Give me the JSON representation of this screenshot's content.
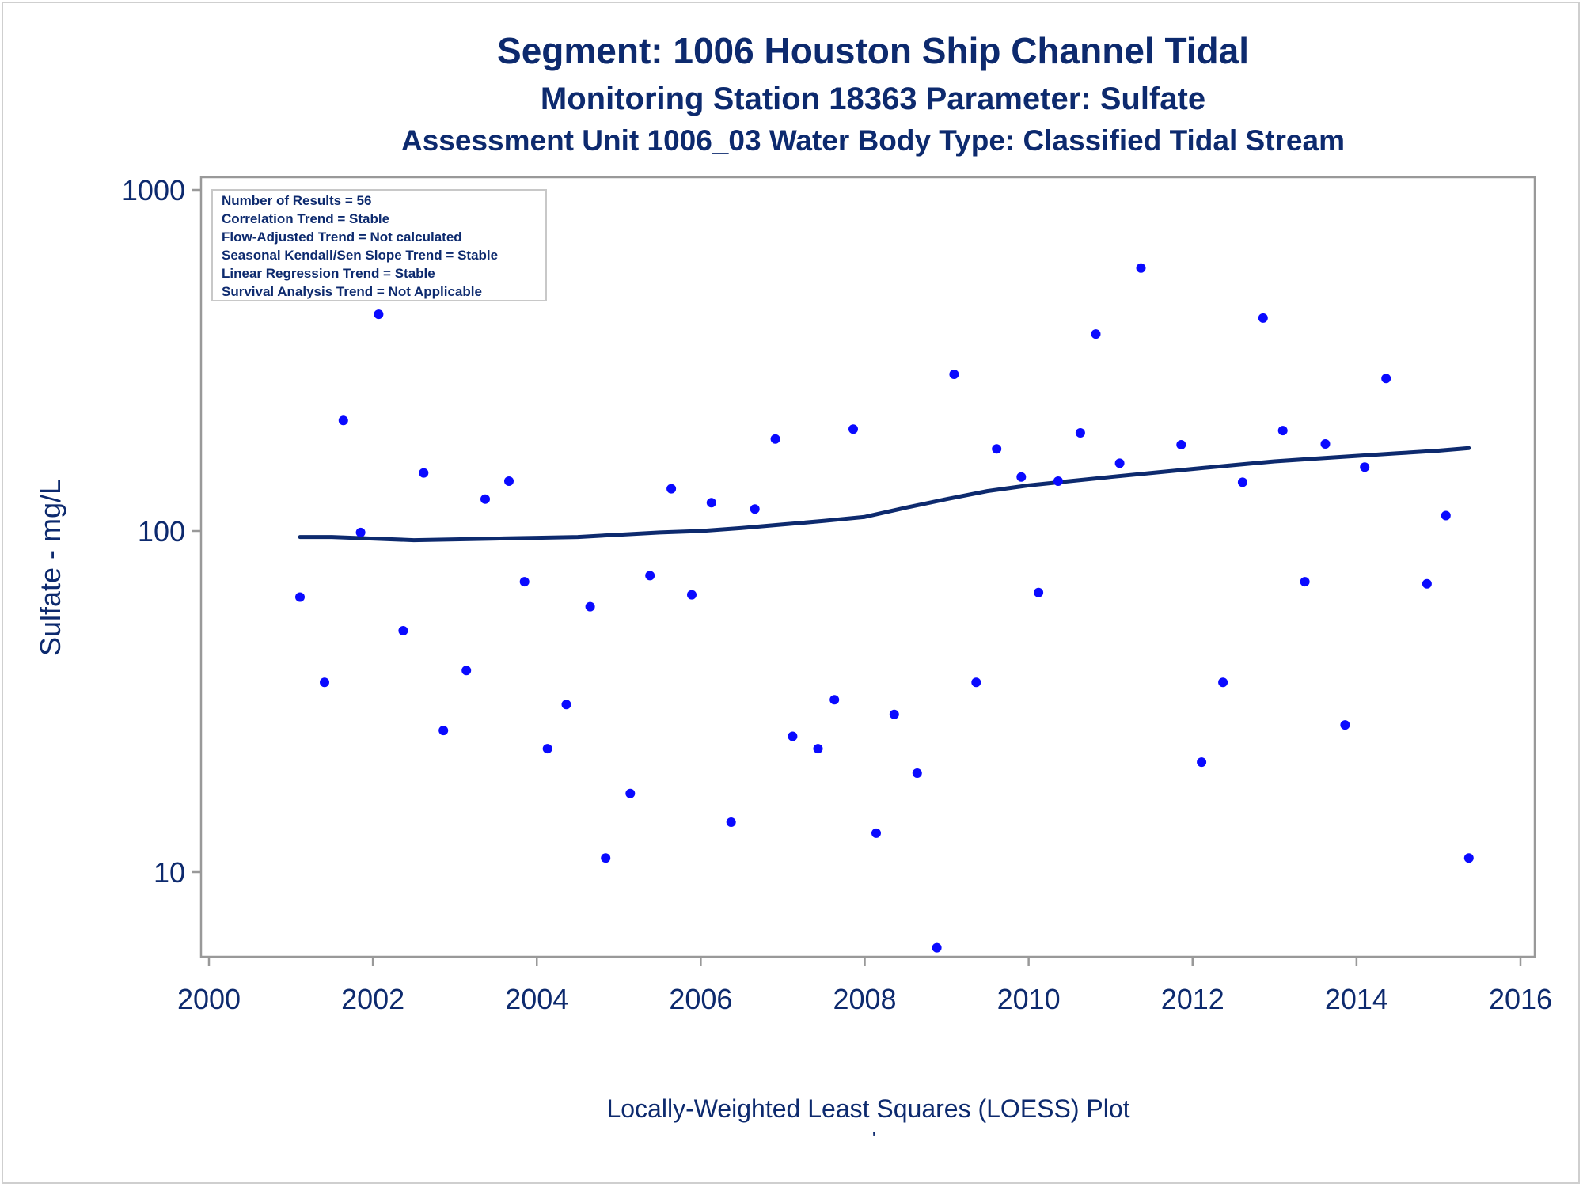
{
  "titles": {
    "line1": "Segment: 1006  Houston Ship Channel Tidal",
    "line2": "Monitoring Station 18363 Parameter: Sulfate",
    "line3": "Assessment Unit 1006_03   Water Body Type: Classified Tidal Stream"
  },
  "stats_box": {
    "lines": [
      "Number of Results = 56",
      "Correlation Trend = Stable",
      "Flow-Adjusted Trend = Not calculated",
      "Seasonal Kendall/Sen Slope Trend = Stable",
      "Linear Regression Trend = Stable",
      "Survival Analysis Trend = Not Applicable"
    ]
  },
  "footnote": "Locally-Weighted Least Squares (LOESS) Plot",
  "colors": {
    "text": "#0d2a6e",
    "points": "#0a0aff",
    "loess_line": "#0d2a6e",
    "axis": "#999999"
  },
  "chart_data": {
    "type": "scatter",
    "title": "Segment: 1006  Houston Ship Channel Tidal",
    "xlabel": "",
    "ylabel": "Sulfate - mg/L",
    "xlim": [
      2000,
      2016
    ],
    "ylim": [
      5.99,
      1052
    ],
    "y_scale": "log",
    "x_ticks": [
      2000,
      2002,
      2004,
      2006,
      2008,
      2010,
      2012,
      2014,
      2016
    ],
    "y_ticks": [
      10,
      100,
      1000
    ],
    "grid": false,
    "series": [
      {
        "kind": "points",
        "x": [
          2001.11,
          2001.41,
          2001.64,
          2001.85,
          2002.07,
          2002.37,
          2002.62,
          2002.86,
          2003.14,
          2003.37,
          2003.66,
          2003.85,
          2004.13,
          2004.36,
          2004.65,
          2004.84,
          2005.14,
          2005.38,
          2005.64,
          2005.89,
          2006.13,
          2006.37,
          2006.66,
          2006.91,
          2007.12,
          2007.43,
          2007.63,
          2007.86,
          2008.14,
          2008.36,
          2008.64,
          2008.88,
          2009.09,
          2009.36,
          2009.61,
          2009.91,
          2010.12,
          2010.36,
          2010.63,
          2010.82,
          2011.11,
          2011.37,
          2011.86,
          2012.11,
          2012.37,
          2012.61,
          2012.86,
          2013.1,
          2013.37,
          2013.62,
          2013.86,
          2014.1,
          2014.36,
          2014.86,
          2015.09,
          2015.37
        ],
        "y": [
          64,
          36,
          211,
          99,
          432,
          51,
          148,
          26,
          39,
          124,
          140,
          71,
          23,
          31,
          60,
          11,
          17,
          74,
          133,
          65,
          121,
          14,
          116,
          186,
          25,
          23,
          32,
          199,
          13,
          29,
          19.5,
          6,
          288,
          36,
          174,
          144,
          66,
          140,
          194,
          378,
          158,
          590,
          179,
          21,
          36,
          139,
          421,
          197,
          71,
          180,
          27,
          154,
          280,
          70,
          111,
          11
        ]
      },
      {
        "kind": "loess_line",
        "x": [
          2001.11,
          2001.5,
          2002.0,
          2002.5,
          2003.0,
          2003.5,
          2004.0,
          2004.5,
          2005.0,
          2005.5,
          2006.0,
          2006.5,
          2007.0,
          2007.5,
          2008.0,
          2008.5,
          2009.0,
          2009.5,
          2010.0,
          2010.5,
          2011.0,
          2011.5,
          2012.0,
          2012.5,
          2013.0,
          2013.5,
          2014.0,
          2014.5,
          2015.0,
          2015.37
        ],
        "y": [
          96,
          96,
          95,
          94,
          94.5,
          95,
          95.5,
          96,
          97.5,
          99,
          100,
          102,
          104.5,
          107,
          110,
          117,
          124,
          131,
          136,
          140,
          144,
          148,
          152,
          156,
          160,
          163,
          166,
          169,
          172,
          175
        ]
      }
    ]
  }
}
